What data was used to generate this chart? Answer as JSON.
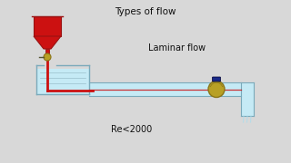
{
  "bg_color": "#d8d8d8",
  "title": "Types of flow",
  "label_laminar": "Laminar flow",
  "label_re": "Re<2000",
  "title_fontsize": 7.5,
  "label_fontsize": 7,
  "re_fontsize": 7,
  "funnel_red": "#cc1111",
  "funnel_dark": "#991111",
  "tank_fill": "#c5eaf5",
  "tank_outline": "#7aaabb",
  "pipe_fill": "#c5eaf5",
  "pipe_outline": "#7aaabb",
  "valve_body": "#b8a025",
  "valve_dark": "#8a7518",
  "valve_top": "#1a2a88",
  "tube_red": "#cc1111",
  "water_lines": "#9bbfcc",
  "small_valve_body": "#b8a025",
  "small_valve_dark": "#8a7518"
}
